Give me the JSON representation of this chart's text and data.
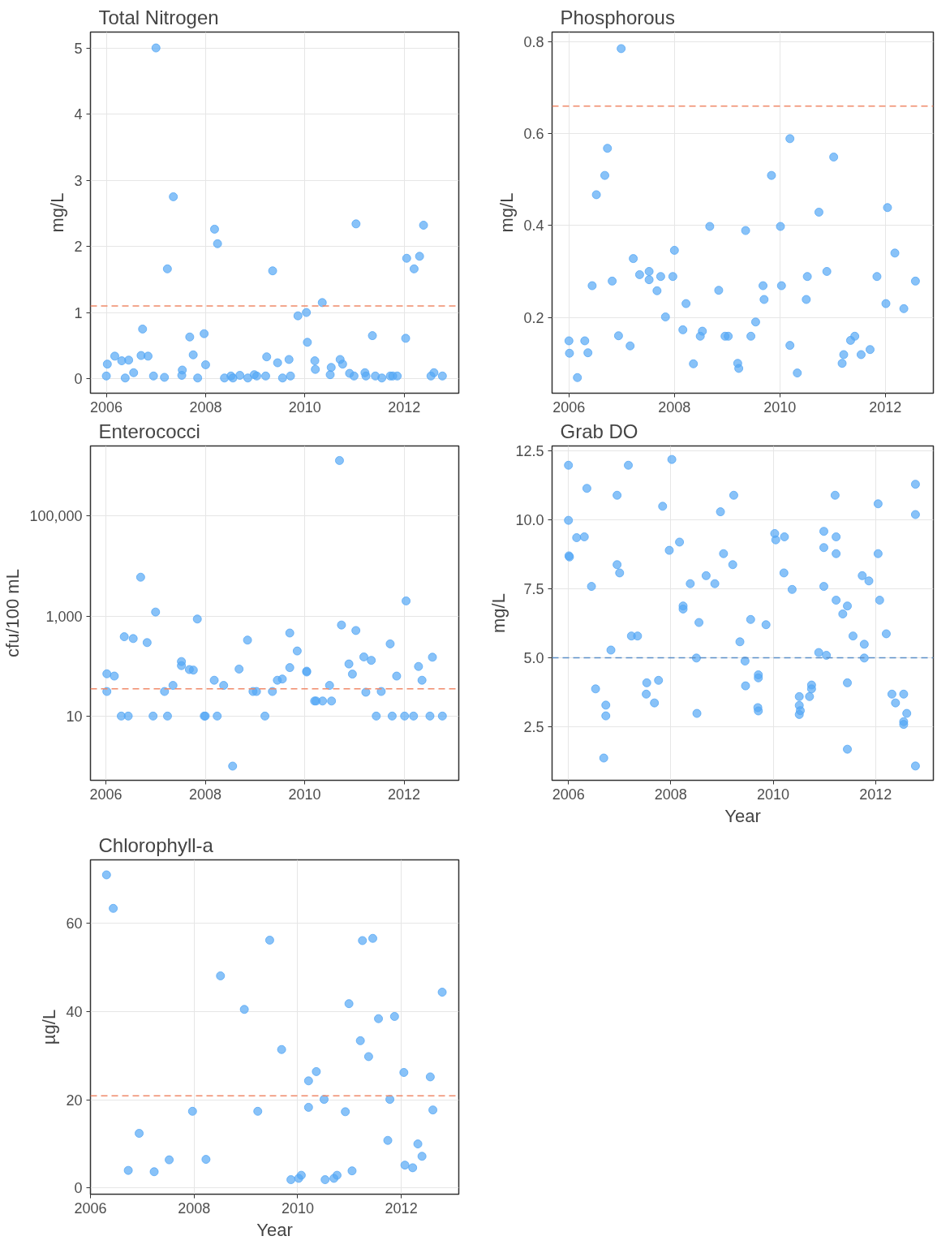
{
  "chart_data": [
    {
      "type": "scatter",
      "title": "Total Nitrogen",
      "ylabel": "mg/L",
      "marker": "circle",
      "grid": true,
      "xlim": [
        2005.68,
        2013.1
      ],
      "ylim": [
        -0.22,
        5.24
      ],
      "xticks": [
        2006,
        2008,
        2010,
        2012
      ],
      "yticks": [
        0,
        1,
        2,
        3,
        4,
        5
      ],
      "series": [
        {
          "color": "#56a8f5",
          "x": [
            2006.0,
            2006.02,
            2006.17,
            2006.31,
            2006.38,
            2006.45,
            2006.55,
            2006.7,
            2006.73,
            2006.84,
            2006.95,
            2007.0,
            2007.17,
            2007.23,
            2007.35,
            2007.52,
            2007.53,
            2007.68,
            2007.75,
            2007.84,
            2007.97,
            2008.0,
            2008.18,
            2008.24,
            2008.38,
            2008.51,
            2008.55,
            2008.69,
            2008.85,
            2008.98,
            2009.03,
            2009.21,
            2009.23,
            2009.35,
            2009.45,
            2009.55,
            2009.68,
            2009.71,
            2009.86,
            2010.03,
            2010.05,
            2010.2,
            2010.21,
            2010.35,
            2010.51,
            2010.53,
            2010.71,
            2010.76,
            2010.9,
            2010.99,
            2011.03,
            2011.21,
            2011.23,
            2011.36,
            2011.42,
            2011.55,
            2011.72,
            2011.77,
            2011.86,
            2012.03,
            2012.05,
            2012.2,
            2012.31,
            2012.39,
            2012.54,
            2012.6,
            2012.77
          ],
          "values": [
            0.04,
            0.22,
            0.34,
            0.27,
            0.01,
            0.28,
            0.09,
            0.35,
            0.75,
            0.34,
            0.04,
            5.0,
            0.02,
            1.66,
            2.75,
            0.05,
            0.13,
            0.63,
            0.36,
            0.01,
            0.68,
            0.21,
            2.26,
            2.04,
            0.01,
            0.04,
            0.01,
            0.05,
            0.01,
            0.06,
            0.04,
            0.04,
            0.33,
            1.63,
            0.24,
            0.01,
            0.29,
            0.04,
            0.95,
            1.0,
            0.55,
            0.27,
            0.14,
            1.15,
            0.06,
            0.17,
            0.29,
            0.22,
            0.08,
            0.04,
            2.34,
            0.09,
            0.04,
            0.65,
            0.04,
            0.01,
            0.04,
            0.04,
            0.04,
            0.61,
            1.82,
            1.66,
            1.85,
            2.32,
            0.04,
            0.09,
            0.04
          ]
        }
      ],
      "ref_lines": [
        {
          "axis": "y",
          "value": 1.1,
          "color": "#f08a6a",
          "line_style": "dashed"
        }
      ]
    },
    {
      "type": "scatter",
      "title": "Phosphorous",
      "ylabel": "mg/L",
      "marker": "circle",
      "grid": true,
      "xlim": [
        2005.68,
        2012.91
      ],
      "ylim": [
        0.035,
        0.821
      ],
      "xticks": [
        2006,
        2008,
        2010,
        2012
      ],
      "yticks": [
        0.2,
        0.4,
        0.6,
        0.8
      ],
      "series": [
        {
          "color": "#56a8f5",
          "x": [
            2006.0,
            2006.01,
            2006.16,
            2006.3,
            2006.36,
            2006.44,
            2006.52,
            2006.68,
            2006.73,
            2006.82,
            2006.94,
            2006.99,
            2007.16,
            2007.22,
            2007.34,
            2007.52,
            2007.52,
            2007.67,
            2007.74,
            2007.83,
            2007.97,
            2008.0,
            2008.16,
            2008.22,
            2008.36,
            2008.49,
            2008.53,
            2008.67,
            2008.84,
            2008.96,
            2009.02,
            2009.2,
            2009.22,
            2009.35,
            2009.45,
            2009.54,
            2009.68,
            2009.7,
            2009.84,
            2010.01,
            2010.03,
            2010.19,
            2010.19,
            2010.33,
            2010.5,
            2010.52,
            2010.74,
            2010.89,
            2011.02,
            2011.18,
            2011.21,
            2011.34,
            2011.42,
            2011.54,
            2011.71,
            2011.84,
            2012.01,
            2012.04,
            2012.18,
            2012.35,
            2012.57
          ],
          "values": [
            0.149,
            0.122,
            0.069,
            0.149,
            0.123,
            0.269,
            0.467,
            0.509,
            0.568,
            0.279,
            0.16,
            0.785,
            0.138,
            0.328,
            0.293,
            0.3,
            0.282,
            0.258,
            0.289,
            0.201,
            0.289,
            0.346,
            0.173,
            0.23,
            0.099,
            0.159,
            0.17,
            0.398,
            0.259,
            0.159,
            0.159,
            0.1,
            0.089,
            0.389,
            0.159,
            0.19,
            0.269,
            0.239,
            0.509,
            0.398,
            0.269,
            0.139,
            0.589,
            0.079,
            0.239,
            0.289,
            0.429,
            0.3,
            0.549,
            0.1,
            0.119,
            0.15,
            0.159,
            0.119,
            0.13,
            0.289,
            0.23,
            0.439,
            0.34,
            0.219,
            0.279
          ]
        }
      ],
      "ref_lines": [
        {
          "axis": "y",
          "value": 0.66,
          "color": "#f08a6a",
          "line_style": "dashed"
        }
      ]
    },
    {
      "type": "scatter",
      "title": "Enterococci",
      "ylabel": "cfu/100 mL",
      "marker": "circle",
      "grid": true,
      "log": "y",
      "xlim": [
        2005.69,
        2013.1
      ],
      "ylim": [
        0.52,
        2500000
      ],
      "xticks": [
        2006,
        2008,
        2010,
        2012
      ],
      "yticks": [
        {
          "value": 10,
          "label": "10"
        },
        {
          "value": 1000,
          "label": "1,000"
        },
        {
          "value": 100000,
          "label": "100,000"
        }
      ],
      "series": [
        {
          "color": "#56a8f5",
          "x": [
            2006.02,
            2006.02,
            2006.17,
            2006.31,
            2006.45,
            2006.37,
            2006.55,
            2006.7,
            2006.83,
            2006.95,
            2007.0,
            2007.18,
            2007.24,
            2007.35,
            2007.52,
            2007.52,
            2007.68,
            2007.76,
            2007.84,
            2007.98,
            2008.0,
            2008.18,
            2008.24,
            2008.37,
            2008.55,
            2008.68,
            2008.85,
            2008.96,
            2009.03,
            2009.2,
            2009.35,
            2009.45,
            2009.55,
            2009.7,
            2009.7,
            2009.85,
            2010.04,
            2010.04,
            2010.2,
            2010.23,
            2010.36,
            2010.5,
            2010.54,
            2010.7,
            2010.74,
            2010.89,
            2010.96,
            2011.03,
            2011.19,
            2011.23,
            2011.34,
            2011.44,
            2011.54,
            2011.72,
            2011.76,
            2011.85,
            2012.01,
            2012.04,
            2012.19,
            2012.29,
            2012.36,
            2012.52,
            2012.57,
            2012.77
          ],
          "values": [
            70,
            31,
            63,
            10,
            10,
            385,
            354,
            5960,
            294,
            10,
            1200,
            31,
            10,
            41,
            123,
            102,
            85,
            83,
            870,
            10,
            10,
            52,
            10,
            41,
            1,
            87,
            330,
            31,
            31,
            10,
            31,
            52,
            55,
            93,
            457,
            200,
            79,
            76,
            20,
            20,
            20,
            41,
            20,
            1280000,
            660,
            110,
            69,
            513,
            152,
            30,
            130,
            10,
            31,
            277,
            10,
            63,
            10,
            2000,
            10,
            98,
            52,
            10,
            150,
            10
          ]
        }
      ],
      "ref_lines": [
        {
          "axis": "y",
          "value": 35,
          "color": "#f08a6a",
          "line_style": "dashed"
        }
      ]
    },
    {
      "type": "scatter",
      "title": "Grab DO",
      "ylabel": "mg/L",
      "xlabel": "Year",
      "marker": "circle",
      "grid": true,
      "xlim": [
        2005.68,
        2013.13
      ],
      "ylim": [
        0.55,
        12.69
      ],
      "xticks": [
        2006,
        2008,
        2010,
        2012
      ],
      "yticks": [
        2.5,
        {
          "value": 5,
          "label": "5.0"
        },
        7.5,
        {
          "value": 10,
          "label": "10.0"
        },
        12.5
      ],
      "series": [
        {
          "color": "#56a8f5",
          "x": [
            2006.0,
            2006.0,
            2006.01,
            2006.02,
            2006.16,
            2006.31,
            2006.36,
            2006.45,
            2006.53,
            2006.69,
            2006.73,
            2006.73,
            2006.83,
            2006.95,
            2006.95,
            2007.0,
            2007.17,
            2007.23,
            2007.35,
            2007.52,
            2007.53,
            2007.68,
            2007.76,
            2007.84,
            2007.97,
            2008.02,
            2008.17,
            2008.24,
            2008.24,
            2008.38,
            2008.5,
            2008.51,
            2008.55,
            2008.69,
            2008.86,
            2008.97,
            2009.03,
            2009.21,
            2009.23,
            2009.35,
            2009.45,
            2009.46,
            2009.56,
            2009.71,
            2009.71,
            2009.7,
            2009.71,
            2009.86,
            2010.03,
            2010.05,
            2010.22,
            2010.21,
            2010.37,
            2010.51,
            2010.51,
            2010.53,
            2010.51,
            2010.71,
            2010.75,
            2010.75,
            2010.89,
            2011.04,
            2010.99,
            2010.99,
            2010.99,
            2011.21,
            2011.23,
            2011.23,
            2011.23,
            2011.36,
            2011.45,
            2011.45,
            2011.45,
            2011.56,
            2011.74,
            2011.78,
            2011.78,
            2011.87,
            2012.05,
            2012.05,
            2012.08,
            2012.21,
            2012.32,
            2012.39,
            2012.55,
            2012.61,
            2012.55,
            2012.55,
            2012.78,
            2012.78,
            2012.78
          ],
          "values": [
            11.99,
            9.99,
            8.7,
            8.66,
            9.36,
            9.39,
            11.15,
            7.59,
            3.87,
            1.36,
            3.28,
            2.89,
            5.28,
            8.38,
            10.9,
            8.08,
            11.99,
            5.79,
            5.79,
            3.68,
            4.09,
            3.36,
            4.18,
            10.5,
            8.9,
            12.2,
            9.2,
            6.88,
            6.77,
            7.69,
            4.99,
            2.98,
            6.28,
            7.98,
            7.69,
            10.3,
            8.78,
            8.38,
            10.9,
            5.58,
            4.88,
            3.98,
            6.39,
            4.38,
            4.27,
            3.19,
            3.07,
            6.2,
            9.51,
            9.28,
            9.39,
            8.08,
            7.48,
            3.59,
            3.27,
            3.08,
            2.94,
            3.59,
            4.01,
            3.87,
            5.19,
            5.09,
            9.59,
            9.0,
            7.59,
            10.9,
            9.39,
            8.78,
            7.09,
            6.59,
            6.88,
            4.09,
            1.68,
            5.79,
            7.98,
            5.49,
            4.99,
            7.79,
            10.59,
            8.78,
            7.09,
            5.87,
            3.68,
            3.36,
            3.68,
            2.98,
            2.68,
            2.58,
            11.3,
            10.2,
            1.07
          ]
        }
      ],
      "ref_lines": [
        {
          "axis": "y",
          "value": 5.0,
          "color": "#5b8fc7",
          "line_style": "dashed"
        }
      ]
    },
    {
      "type": "scatter",
      "title": "Chlorophyll-a",
      "ylabel": "µg/L",
      "xlabel": "Year",
      "marker": "circle",
      "grid": true,
      "xlim": [
        2006,
        2013.11
      ],
      "ylim": [
        -1.4,
        74.4
      ],
      "xticks": [
        2006,
        2008,
        2010,
        2012
      ],
      "yticks": [
        0,
        20,
        40,
        60
      ],
      "series": [
        {
          "color": "#56a8f5",
          "x": [
            2006.31,
            2006.44,
            2006.73,
            2006.94,
            2007.23,
            2007.52,
            2007.97,
            2008.23,
            2008.51,
            2008.97,
            2009.23,
            2009.46,
            2009.69,
            2009.87,
            2010.02,
            2010.07,
            2010.21,
            2010.21,
            2010.36,
            2010.51,
            2010.53,
            2010.7,
            2010.76,
            2010.92,
            2010.99,
            2011.05,
            2011.21,
            2011.25,
            2011.37,
            2011.45,
            2011.56,
            2011.74,
            2011.78,
            2011.87,
            2012.05,
            2012.07,
            2012.22,
            2012.32,
            2012.4,
            2012.56,
            2012.61,
            2012.79
          ],
          "values": [
            71.0,
            63.4,
            4.0,
            12.4,
            3.7,
            6.4,
            17.4,
            6.5,
            48.1,
            40.5,
            17.4,
            56.2,
            31.4,
            1.9,
            2.2,
            2.9,
            24.3,
            18.3,
            26.4,
            20.1,
            1.9,
            2.2,
            2.9,
            17.3,
            41.8,
            3.9,
            33.4,
            56.1,
            29.8,
            56.6,
            38.4,
            10.8,
            20.1,
            38.9,
            26.2,
            5.2,
            4.6,
            10.0,
            7.2,
            25.2,
            17.7,
            44.4
          ]
        }
      ],
      "ref_lines": [
        {
          "axis": "y",
          "value": 20.9,
          "color": "#f08a6a",
          "line_style": "dashed"
        }
      ]
    }
  ]
}
